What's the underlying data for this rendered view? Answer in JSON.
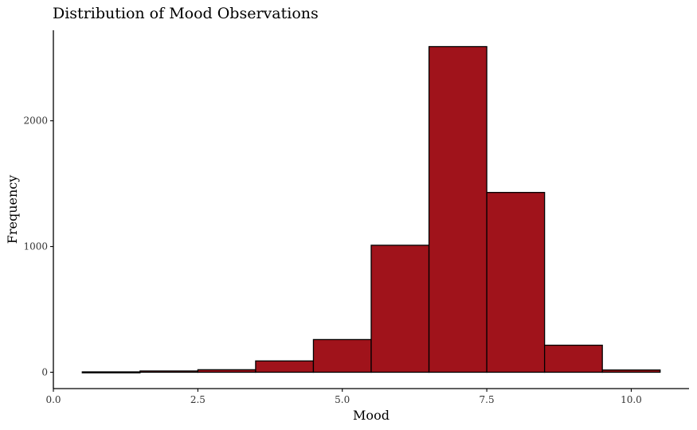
{
  "chart_data": {
    "type": "bar",
    "title": "Distribution of Mood Observations",
    "xlabel": "Mood",
    "ylabel": "Frequency",
    "bar_color": "#a0131b",
    "outline_color": "#000000",
    "bin_width": 1,
    "bins": [
      {
        "x0": 0.5,
        "x1": 1.5,
        "count": 3
      },
      {
        "x0": 1.5,
        "x1": 2.5,
        "count": 10
      },
      {
        "x0": 2.5,
        "x1": 3.5,
        "count": 20
      },
      {
        "x0": 3.5,
        "x1": 4.5,
        "count": 90
      },
      {
        "x0": 4.5,
        "x1": 5.5,
        "count": 260
      },
      {
        "x0": 5.5,
        "x1": 6.5,
        "count": 1010
      },
      {
        "x0": 6.5,
        "x1": 7.5,
        "count": 2590
      },
      {
        "x0": 7.5,
        "x1": 8.5,
        "count": 1430
      },
      {
        "x0": 8.5,
        "x1": 9.5,
        "count": 215
      },
      {
        "x0": 9.5,
        "x1": 10.5,
        "count": 18
      }
    ],
    "xlim": [
      0,
      10.5
    ],
    "ylim": [
      -130,
      2720
    ],
    "xticks": [
      {
        "value": 0,
        "label": "0.0"
      },
      {
        "value": 2.5,
        "label": "2.5"
      },
      {
        "value": 5,
        "label": "5.0"
      },
      {
        "value": 7.5,
        "label": "7.5"
      },
      {
        "value": 10,
        "label": "10.0"
      }
    ],
    "yticks": [
      {
        "value": 0,
        "label": "0"
      },
      {
        "value": 1000,
        "label": "1000"
      },
      {
        "value": 2000,
        "label": "2000"
      }
    ],
    "grid": false,
    "legend": "none"
  }
}
